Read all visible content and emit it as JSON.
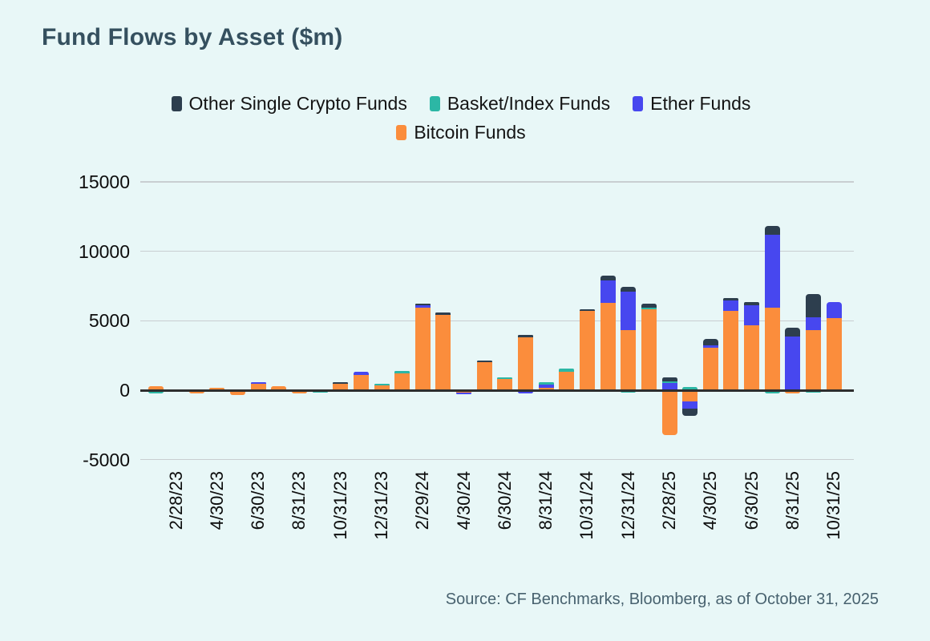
{
  "title": "Fund Flows by Asset ($m)",
  "source_note": "Source: CF Benchmarks, Bloomberg, as of October 31, 2025",
  "background_color": "#e8f7f7",
  "chart_data": {
    "type": "bar",
    "stacked": true,
    "title": "Fund Flows by Asset ($m)",
    "xlabel": "",
    "ylabel": "",
    "ylim": [
      -5500,
      15500
    ],
    "yticks": [
      15000,
      10000,
      5000,
      0,
      -5000
    ],
    "grid": "horizontal",
    "legend_position": "top-center",
    "categories": [
      "1/31/23",
      "2/28/23",
      "3/31/23",
      "4/30/23",
      "5/31/23",
      "6/30/23",
      "7/31/23",
      "8/31/23",
      "9/30/23",
      "10/31/23",
      "11/30/23",
      "12/31/23",
      "1/31/24",
      "2/29/24",
      "3/31/24",
      "4/30/24",
      "5/31/24",
      "6/30/24",
      "7/31/24",
      "8/31/24",
      "9/30/24",
      "10/31/24",
      "11/30/24",
      "12/31/24",
      "1/31/25",
      "2/28/25",
      "3/31/25",
      "4/30/25",
      "5/31/25",
      "6/30/25",
      "7/31/25",
      "8/31/25",
      "9/30/25",
      "10/31/25"
    ],
    "x_tick_labels_shown": [
      "2/28/23",
      "4/30/23",
      "6/30/23",
      "8/31/23",
      "10/31/23",
      "12/31/23",
      "2/29/24",
      "4/30/24",
      "6/30/24",
      "8/31/24",
      "10/31/24",
      "12/31/24",
      "2/28/25",
      "4/30/25",
      "6/30/25",
      "8/31/25",
      "10/31/25"
    ],
    "series": [
      {
        "name": "Bitcoin Funds",
        "color": "#fb8d3c",
        "values": [
          300,
          -130,
          -250,
          190,
          -320,
          450,
          290,
          -250,
          -50,
          460,
          1100,
          350,
          1230,
          5950,
          5430,
          -150,
          2000,
          780,
          3830,
          200,
          1350,
          5690,
          6290,
          4350,
          5830,
          -3230,
          -810,
          3040,
          5700,
          4680,
          5930,
          -250,
          4350,
          5210
        ]
      },
      {
        "name": "Ether Funds",
        "color": "#4747ef",
        "values": [
          0,
          0,
          0,
          0,
          0,
          130,
          0,
          0,
          0,
          -140,
          250,
          0,
          0,
          180,
          0,
          -140,
          0,
          -100,
          -230,
          190,
          -100,
          0,
          1600,
          2730,
          0,
          500,
          -540,
          210,
          740,
          1460,
          5250,
          3870,
          900,
          1120
        ]
      },
      {
        "name": "Basket/Index Funds",
        "color": "#2cb7a5",
        "values": [
          -250,
          0,
          0,
          0,
          0,
          0,
          0,
          0,
          -120,
          0,
          0,
          140,
          150,
          0,
          -100,
          0,
          0,
          150,
          0,
          160,
          190,
          0,
          -120,
          -190,
          120,
          160,
          250,
          0,
          -120,
          -100,
          -250,
          0,
          -160,
          -60
        ]
      },
      {
        "name": "Other Single Crypto Funds",
        "color": "#2d3e4e",
        "values": [
          0,
          0,
          0,
          0,
          0,
          0,
          0,
          0,
          0,
          120,
          0,
          0,
          0,
          110,
          150,
          0,
          150,
          0,
          140,
          0,
          0,
          160,
          330,
          370,
          270,
          250,
          -480,
          430,
          190,
          200,
          670,
          640,
          1660,
          0
        ]
      }
    ],
    "legend": [
      {
        "label": "Other Single Crypto Funds",
        "color": "#2d3e4e"
      },
      {
        "label": "Basket/Index Funds",
        "color": "#2cb7a5"
      },
      {
        "label": "Ether Funds",
        "color": "#4747ef"
      },
      {
        "label": "Bitcoin Funds",
        "color": "#fb8d3c"
      }
    ]
  }
}
